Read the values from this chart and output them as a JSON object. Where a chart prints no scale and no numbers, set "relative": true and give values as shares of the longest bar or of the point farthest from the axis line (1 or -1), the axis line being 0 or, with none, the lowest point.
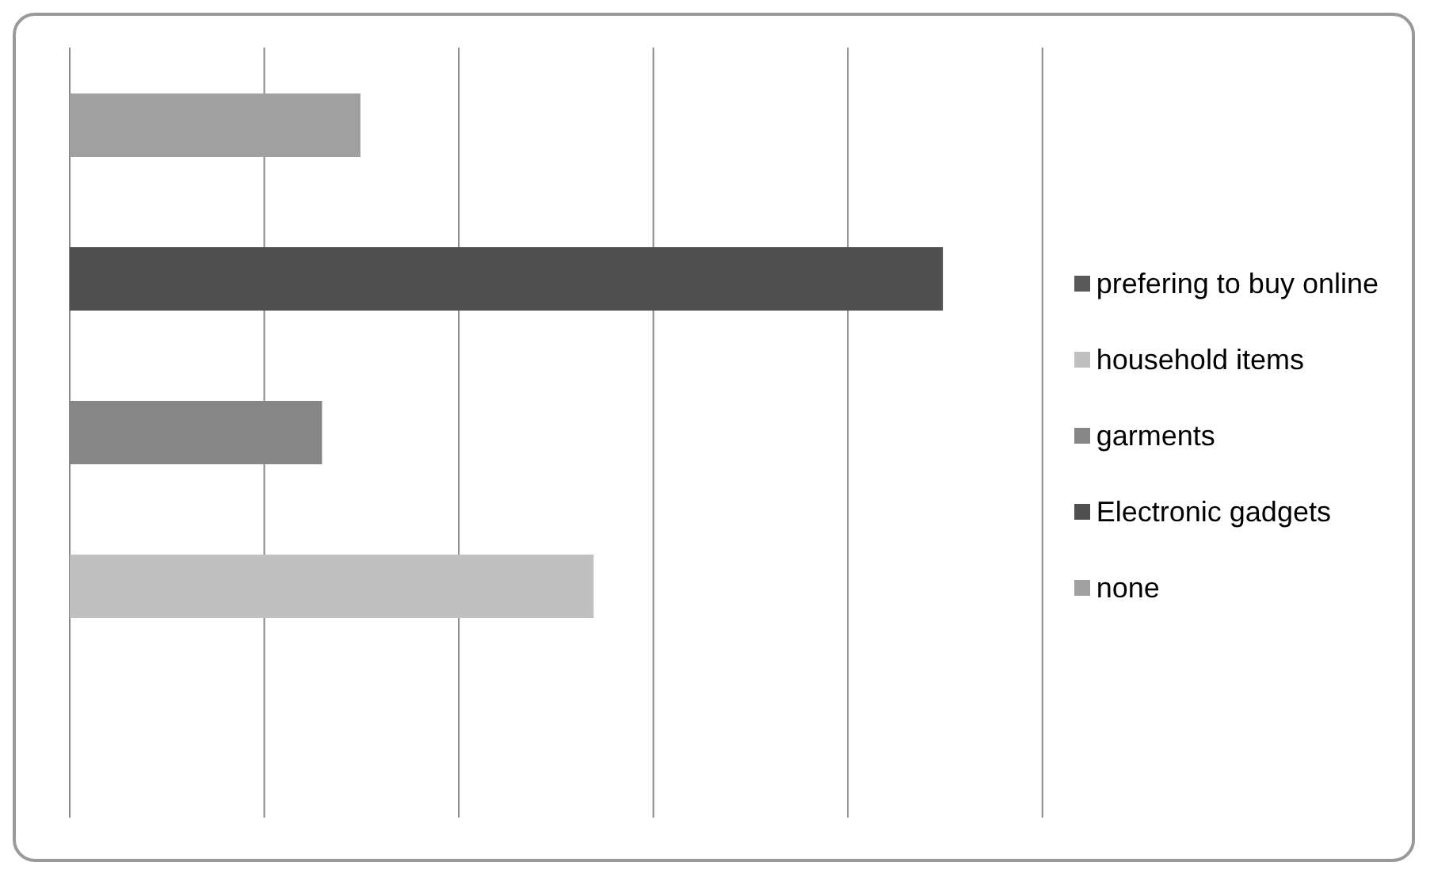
{
  "chart_data": {
    "type": "bar",
    "orientation": "horizontal",
    "stacked": true,
    "relative": true,
    "grid": "x",
    "legend": "right",
    "categories": [
      null,
      null,
      null,
      null
    ],
    "series": [
      {
        "name": "prefering to buy online",
        "color": "#595959",
        "values": [
          null,
          null,
          null,
          null
        ]
      },
      {
        "name": "household items",
        "color": "#c0c0c0",
        "values": [
          null,
          null,
          null,
          0.6
        ]
      },
      {
        "name": "garments",
        "color": "#868686",
        "values": [
          null,
          null,
          0.289,
          null
        ]
      },
      {
        "name": "Electronic gadgets",
        "color": "#505050",
        "values": [
          null,
          1,
          null,
          null
        ]
      },
      {
        "name": "none",
        "color": "#a0a0a0",
        "values": [
          0.333,
          null,
          null,
          null
        ]
      }
    ]
  }
}
